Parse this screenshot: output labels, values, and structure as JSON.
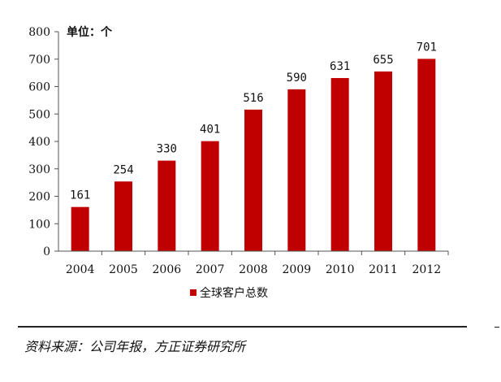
{
  "chart_data": {
    "type": "bar",
    "unit_label": "单位：个",
    "categories": [
      "2004",
      "2005",
      "2006",
      "2007",
      "2008",
      "2009",
      "2010",
      "2011",
      "2012"
    ],
    "series": [
      {
        "name": "全球客户总数",
        "values": [
          161,
          254,
          330,
          401,
          516,
          590,
          631,
          655,
          701
        ],
        "color": "#c00000"
      }
    ],
    "ylim": [
      0,
      800
    ],
    "yticks": [
      "0",
      "100",
      "200",
      "300",
      "400",
      "500",
      "600",
      "700",
      "800"
    ],
    "grid": false,
    "legend_position": "bottom-center"
  },
  "source": {
    "text": "资料来源：公司年报，方正证券研究所"
  }
}
